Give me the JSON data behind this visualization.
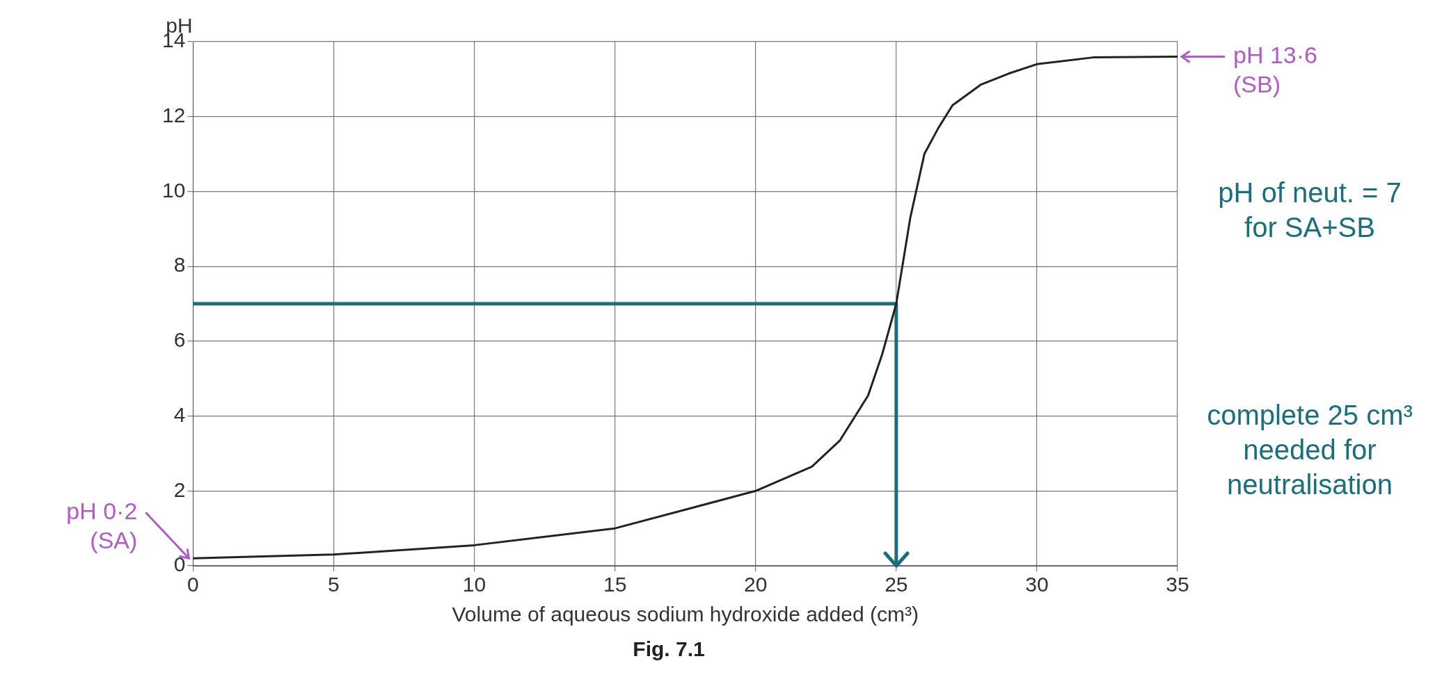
{
  "chart_data": {
    "type": "line",
    "title": "Fig. 7.1",
    "xlabel": "Volume of aqueous sodium hydroxide added (cm³)",
    "ylabel": "pH",
    "xlim": [
      0,
      35
    ],
    "xticks": [
      0,
      5,
      10,
      15,
      20,
      25,
      30,
      35
    ],
    "ylim": [
      0,
      14
    ],
    "yticks": [
      0,
      2,
      4,
      6,
      8,
      10,
      12,
      14
    ],
    "grid": true,
    "marker": "none",
    "line_style": "solid",
    "series": [
      {
        "color": "#222222",
        "x": [
          0,
          5,
          10,
          15,
          20,
          22,
          23,
          24,
          24.5,
          25,
          25.5,
          26,
          26.5,
          27,
          28,
          29,
          30,
          32,
          35
        ],
        "values": [
          0.2,
          0.3,
          0.55,
          1.0,
          2.0,
          2.65,
          3.35,
          4.55,
          5.65,
          7.0,
          9.3,
          11.0,
          11.7,
          12.3,
          12.85,
          13.15,
          13.4,
          13.58,
          13.6
        ]
      },
      {
        "color": "#1a6f7f",
        "x": [
          0,
          25,
          25
        ],
        "values": [
          7,
          7,
          0
        ]
      }
    ],
    "annotations": [
      {
        "text": "pH 13·6 (SB)",
        "x": 35,
        "y": 13.6
      },
      {
        "text": "pH 0·2 (SA)",
        "x": 0,
        "y": 0.2
      },
      "pH of neut. = 7 for SA+SB",
      "complete 25 cm³ needed for neutralisation"
    ]
  }
}
